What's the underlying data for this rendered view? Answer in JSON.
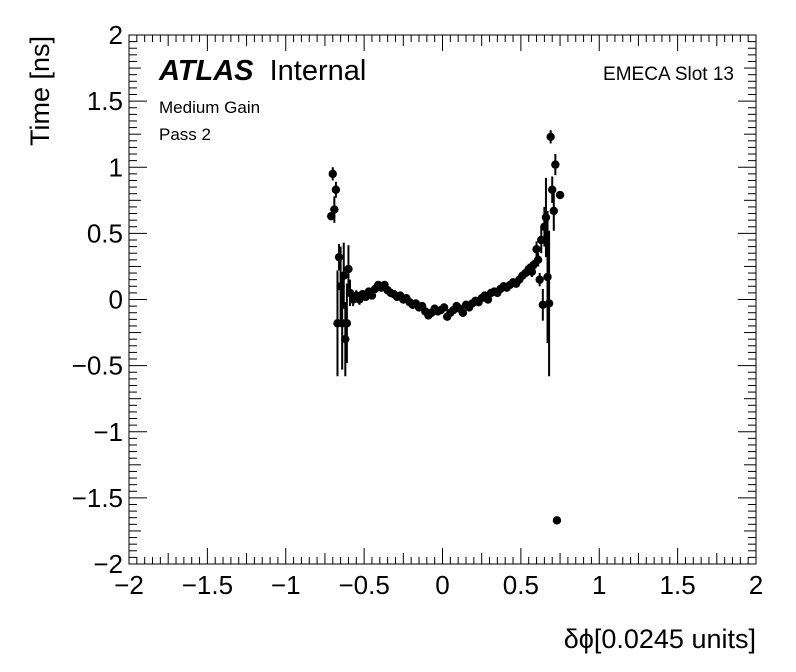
{
  "chart_data": {
    "type": "scatter",
    "title": "",
    "xlabel": "δϕ[0.0245 units]",
    "ylabel": "Time [ns]",
    "xlim": [
      -2,
      2
    ],
    "ylim": [
      -2,
      2
    ],
    "x_ticks": [
      "−2",
      "−1.5",
      "−1",
      "−0.5",
      "0",
      "0.5",
      "1",
      "1.5",
      "2"
    ],
    "y_ticks": [
      "−2",
      "−1.5",
      "−1",
      "−0.5",
      "0",
      "0.5",
      "1",
      "1.5",
      "2"
    ],
    "grid": false,
    "annotations": {
      "atlas_bold": "ATLAS",
      "atlas_rest": "Internal",
      "slot": "EMECA Slot 13",
      "gain": "Medium Gain",
      "pass": "Pass 2"
    },
    "series": [
      {
        "marker": "circle",
        "color": "#000000",
        "points": [
          {
            "x": -0.71,
            "y": 0.63,
            "e": 0.03
          },
          {
            "x": -0.7,
            "y": 0.95,
            "e": 0.05
          },
          {
            "x": -0.69,
            "y": 0.68,
            "e": 0.1
          },
          {
            "x": -0.68,
            "y": 0.83,
            "e": 0.06
          },
          {
            "x": -0.67,
            "y": -0.18,
            "e": 0.4
          },
          {
            "x": -0.66,
            "y": 0.32,
            "e": 0.1
          },
          {
            "x": -0.65,
            "y": 0.1,
            "e": 0.3
          },
          {
            "x": -0.64,
            "y": -0.18,
            "e": 0.35
          },
          {
            "x": -0.63,
            "y": 0.18,
            "e": 0.25
          },
          {
            "x": -0.62,
            "y": -0.3,
            "e": 0.28
          },
          {
            "x": -0.61,
            "y": -0.18,
            "e": 0.3
          },
          {
            "x": -0.6,
            "y": 0.23,
            "e": 0.18
          },
          {
            "x": -0.59,
            "y": 0.05,
            "e": 0.1
          },
          {
            "x": -0.57,
            "y": 0.0,
            "e": 0.05
          },
          {
            "x": -0.55,
            "y": 0.03,
            "e": 0.04
          },
          {
            "x": -0.53,
            "y": 0.0,
            "e": 0.04
          },
          {
            "x": -0.51,
            "y": 0.04,
            "e": 0.03
          },
          {
            "x": -0.49,
            "y": 0.02,
            "e": 0.03
          },
          {
            "x": -0.47,
            "y": 0.06,
            "e": 0.03
          },
          {
            "x": -0.45,
            "y": 0.03,
            "e": 0.03
          },
          {
            "x": -0.43,
            "y": 0.08,
            "e": 0.03
          },
          {
            "x": -0.41,
            "y": 0.11,
            "e": 0.03
          },
          {
            "x": -0.39,
            "y": 0.09,
            "e": 0.03
          },
          {
            "x": -0.37,
            "y": 0.11,
            "e": 0.03
          },
          {
            "x": -0.35,
            "y": 0.07,
            "e": 0.03
          },
          {
            "x": -0.33,
            "y": 0.05,
            "e": 0.03
          },
          {
            "x": -0.31,
            "y": 0.04,
            "e": 0.03
          },
          {
            "x": -0.29,
            "y": 0.02,
            "e": 0.03
          },
          {
            "x": -0.27,
            "y": 0.03,
            "e": 0.03
          },
          {
            "x": -0.25,
            "y": 0.0,
            "e": 0.03
          },
          {
            "x": -0.23,
            "y": 0.01,
            "e": 0.03
          },
          {
            "x": -0.21,
            "y": -0.02,
            "e": 0.03
          },
          {
            "x": -0.19,
            "y": -0.04,
            "e": 0.03
          },
          {
            "x": -0.17,
            "y": -0.03,
            "e": 0.03
          },
          {
            "x": -0.15,
            "y": -0.06,
            "e": 0.03
          },
          {
            "x": -0.13,
            "y": -0.05,
            "e": 0.03
          },
          {
            "x": -0.11,
            "y": -0.09,
            "e": 0.03
          },
          {
            "x": -0.09,
            "y": -0.12,
            "e": 0.03
          },
          {
            "x": -0.07,
            "y": -0.1,
            "e": 0.03
          },
          {
            "x": -0.05,
            "y": -0.07,
            "e": 0.03
          },
          {
            "x": -0.03,
            "y": -0.09,
            "e": 0.03
          },
          {
            "x": -0.01,
            "y": -0.08,
            "e": 0.03
          },
          {
            "x": 0.01,
            "y": -0.06,
            "e": 0.03
          },
          {
            "x": 0.03,
            "y": -0.13,
            "e": 0.03
          },
          {
            "x": 0.05,
            "y": -0.1,
            "e": 0.03
          },
          {
            "x": 0.07,
            "y": -0.08,
            "e": 0.03
          },
          {
            "x": 0.09,
            "y": -0.05,
            "e": 0.03
          },
          {
            "x": 0.11,
            "y": -0.07,
            "e": 0.03
          },
          {
            "x": 0.13,
            "y": -0.1,
            "e": 0.03
          },
          {
            "x": 0.15,
            "y": -0.04,
            "e": 0.03
          },
          {
            "x": 0.17,
            "y": -0.06,
            "e": 0.03
          },
          {
            "x": 0.19,
            "y": -0.03,
            "e": 0.03
          },
          {
            "x": 0.21,
            "y": -0.01,
            "e": 0.03
          },
          {
            "x": 0.23,
            "y": -0.02,
            "e": 0.03
          },
          {
            "x": 0.25,
            "y": 0.01,
            "e": 0.03
          },
          {
            "x": 0.27,
            "y": 0.03,
            "e": 0.03
          },
          {
            "x": 0.29,
            "y": 0.0,
            "e": 0.03
          },
          {
            "x": 0.31,
            "y": 0.05,
            "e": 0.03
          },
          {
            "x": 0.33,
            "y": 0.06,
            "e": 0.03
          },
          {
            "x": 0.35,
            "y": 0.05,
            "e": 0.03
          },
          {
            "x": 0.37,
            "y": 0.08,
            "e": 0.03
          },
          {
            "x": 0.39,
            "y": 0.1,
            "e": 0.03
          },
          {
            "x": 0.41,
            "y": 0.09,
            "e": 0.03
          },
          {
            "x": 0.43,
            "y": 0.11,
            "e": 0.03
          },
          {
            "x": 0.45,
            "y": 0.13,
            "e": 0.03
          },
          {
            "x": 0.47,
            "y": 0.12,
            "e": 0.03
          },
          {
            "x": 0.49,
            "y": 0.15,
            "e": 0.03
          },
          {
            "x": 0.51,
            "y": 0.18,
            "e": 0.03
          },
          {
            "x": 0.53,
            "y": 0.2,
            "e": 0.03
          },
          {
            "x": 0.55,
            "y": 0.23,
            "e": 0.04
          },
          {
            "x": 0.57,
            "y": 0.21,
            "e": 0.04
          },
          {
            "x": 0.58,
            "y": 0.26,
            "e": 0.04
          },
          {
            "x": 0.6,
            "y": 0.38,
            "e": 0.06
          },
          {
            "x": 0.61,
            "y": 0.3,
            "e": 0.05
          },
          {
            "x": 0.62,
            "y": 0.15,
            "e": 0.05
          },
          {
            "x": 0.63,
            "y": 0.45,
            "e": 0.1
          },
          {
            "x": 0.64,
            "y": -0.04,
            "e": 0.12
          },
          {
            "x": 0.65,
            "y": 0.55,
            "e": 0.15
          },
          {
            "x": 0.66,
            "y": 0.62,
            "e": 0.3
          },
          {
            "x": 0.67,
            "y": 0.17,
            "e": 0.5
          },
          {
            "x": 0.68,
            "y": -0.03,
            "e": 0.55
          },
          {
            "x": 0.69,
            "y": 1.23,
            "e": 0.05
          },
          {
            "x": 0.7,
            "y": 0.83,
            "e": 0.1
          },
          {
            "x": 0.71,
            "y": 0.67,
            "e": 0.15
          },
          {
            "x": 0.72,
            "y": 1.02,
            "e": 0.08
          },
          {
            "x": 0.73,
            "y": -1.67,
            "e": 0.02
          },
          {
            "x": 0.75,
            "y": 0.79,
            "e": 0.03
          }
        ]
      }
    ]
  }
}
